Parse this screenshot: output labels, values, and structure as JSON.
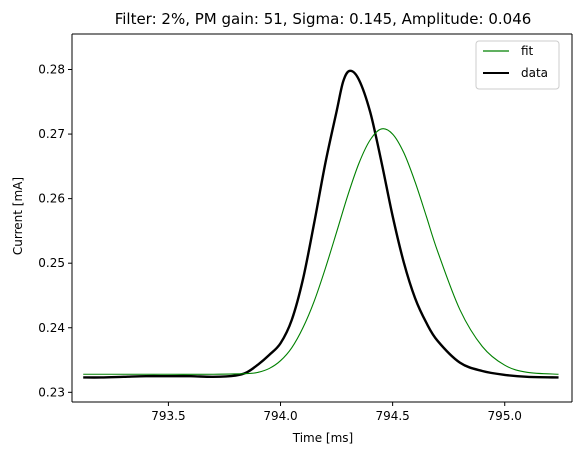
{
  "chart_data": {
    "type": "line",
    "title": "Filter: 2%, PM gain: 51, Sigma: 0.145, Amplitude: 0.046",
    "xlabel": "Time [ms]",
    "ylabel": "Current [mA]",
    "xlim": [
      793.07,
      795.3
    ],
    "ylim": [
      0.2285,
      0.2855
    ],
    "x_ticks": [
      793.5,
      794.0,
      794.5,
      795.0
    ],
    "x_tick_labels": [
      "793.5",
      "794.0",
      "794.5",
      "795.0"
    ],
    "y_ticks": [
      0.23,
      0.24,
      0.25,
      0.26,
      0.27,
      0.28
    ],
    "y_tick_labels": [
      "0.23",
      "0.24",
      "0.25",
      "0.26",
      "0.27",
      "0.28"
    ],
    "grid": false,
    "legend": {
      "placement": "top-right",
      "entries": [
        {
          "label": "fit",
          "color": "#008000"
        },
        {
          "label": "data",
          "color": "#000000"
        }
      ]
    },
    "series": [
      {
        "name": "fit",
        "color": "#008000",
        "x": [
          793.12,
          793.3,
          793.5,
          793.7,
          793.85,
          793.9,
          793.95,
          794.0,
          794.05,
          794.1,
          794.15,
          794.2,
          794.25,
          794.3,
          794.35,
          794.4,
          794.45,
          794.5,
          794.55,
          794.6,
          794.65,
          794.7,
          794.8,
          794.9,
          795.0,
          795.1,
          795.24
        ],
        "y": [
          0.2328,
          0.2328,
          0.2328,
          0.2328,
          0.2329,
          0.2331,
          0.2337,
          0.2349,
          0.2369,
          0.24,
          0.2441,
          0.2492,
          0.2548,
          0.2605,
          0.2655,
          0.2691,
          0.2708,
          0.27,
          0.2671,
          0.2626,
          0.2573,
          0.2519,
          0.2428,
          0.2371,
          0.2342,
          0.2331,
          0.2328
        ]
      },
      {
        "name": "data",
        "color": "#000000",
        "x": [
          793.12,
          793.2,
          793.3,
          793.4,
          793.5,
          793.6,
          793.7,
          793.8,
          793.85,
          793.9,
          793.95,
          794.0,
          794.05,
          794.1,
          794.15,
          794.2,
          794.25,
          794.28,
          794.31,
          794.35,
          794.4,
          794.45,
          794.5,
          794.55,
          794.6,
          794.65,
          794.7,
          794.8,
          794.9,
          795.0,
          795.1,
          795.24
        ],
        "y": [
          0.2323,
          0.2323,
          0.2324,
          0.2325,
          0.2325,
          0.2325,
          0.2324,
          0.2326,
          0.2331,
          0.2343,
          0.2358,
          0.2376,
          0.2412,
          0.2475,
          0.2562,
          0.2655,
          0.2735,
          0.2782,
          0.2798,
          0.2784,
          0.2734,
          0.2657,
          0.2573,
          0.2501,
          0.2446,
          0.2408,
          0.238,
          0.2346,
          0.2333,
          0.2327,
          0.2324,
          0.2323
        ]
      }
    ]
  }
}
